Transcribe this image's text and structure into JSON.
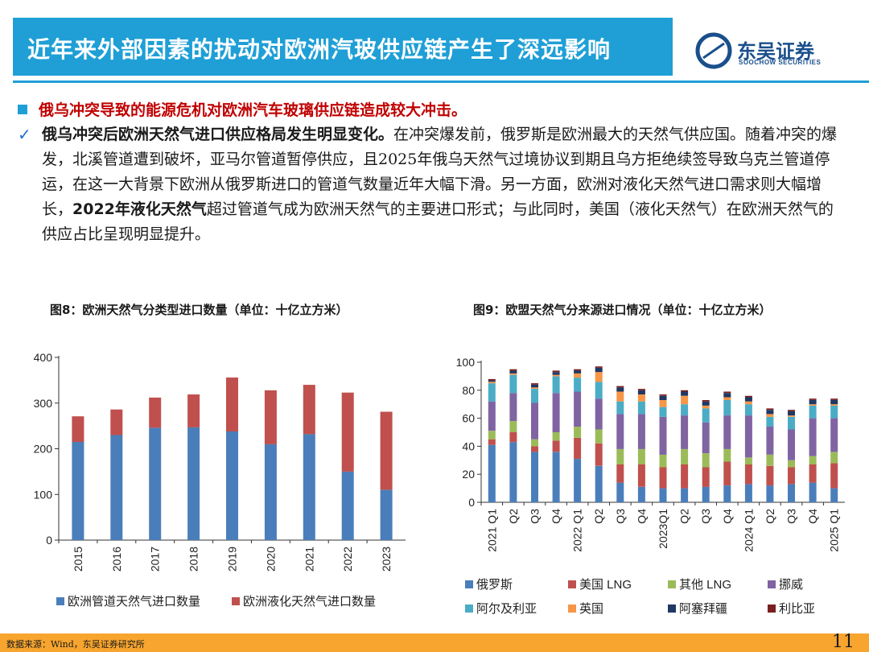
{
  "title": "近年来外部因素的扰动对欧洲汽玻供应链产生了深远影响",
  "logo": {
    "name": "东吴证券",
    "sub": "SOOCHOW SECURITIES"
  },
  "bullet1": "俄乌冲突导致的能源危机对欧洲汽车玻璃供应链造成较大冲击。",
  "para": {
    "lead": "俄乌冲突后欧洲天然气进口供应格局发生明显变化。",
    "body1": "在冲突爆发前，俄罗斯是欧洲最大的天然气供应国。随着冲突的爆发，北溪管道遭到破坏，亚马尔管道暂停供应，且2025年俄乌天然气过境协议到期且乌方拒绝续签导致乌克兰管道停运，在这一大背景下欧洲从俄罗斯进口的管道气数量近年大幅下滑。另一方面，欧洲对液化天然气进口需求则大幅增长，",
    "bold2": "2022年液化天然气",
    "body2": "超过管道气成为欧洲天然气的主要进口形式；与此同时，美国（液化天然气）在欧洲天然气的供应占比呈现明显提升。"
  },
  "caption1": "图8：欧洲天然气分类型进口数量（单位：十亿立方米）",
  "caption2": "图9：欧盟天然气分来源进口情况（单位：十亿立方米）",
  "footer": {
    "source": "数据来源：Wind，东吴证券研究所",
    "page": "11"
  },
  "chart_data": [
    {
      "type": "bar",
      "stacked": true,
      "categories": [
        "2015",
        "2016",
        "2017",
        "2018",
        "2019",
        "2020",
        "2021",
        "2022",
        "2023"
      ],
      "series": [
        {
          "name": "欧洲管道天然气进口数量",
          "color": "#4a7ebb",
          "values": [
            215,
            230,
            246,
            247,
            238,
            210,
            232,
            150,
            110
          ]
        },
        {
          "name": "欧洲液化天然气进口数量",
          "color": "#c0504d",
          "values": [
            56,
            56,
            66,
            72,
            118,
            118,
            108,
            173,
            171
          ]
        }
      ],
      "yticks": [
        "0",
        "100",
        "200",
        "300",
        "400"
      ],
      "ylim": [
        0,
        400
      ]
    },
    {
      "type": "bar",
      "stacked": true,
      "categories": [
        "2021 Q1",
        "Q2",
        "Q3",
        "Q4",
        "2022 Q1",
        "Q2",
        "Q3",
        "Q4",
        "2023Q1",
        "Q2",
        "Q3",
        "Q4",
        "2024 Q1",
        "Q2",
        "Q3",
        "Q4",
        "2025 Q1"
      ],
      "series": [
        {
          "name": "俄罗斯",
          "color": "#4a7ebb",
          "values": [
            41,
            43,
            36,
            36,
            31,
            26,
            14,
            11,
            10,
            10,
            11,
            12,
            13,
            12,
            13,
            14,
            10
          ]
        },
        {
          "name": "美国 LNG",
          "color": "#c0504d",
          "values": [
            4,
            7,
            4,
            8,
            15,
            16,
            13,
            16,
            15,
            17,
            14,
            17,
            14,
            14,
            12,
            13,
            18
          ]
        },
        {
          "name": "其他 LNG",
          "color": "#9bbb59",
          "values": [
            6,
            8,
            5,
            6,
            8,
            10,
            11,
            11,
            9,
            11,
            10,
            9,
            5,
            8,
            5,
            6,
            8
          ]
        },
        {
          "name": "挪威",
          "color": "#8064a2",
          "values": [
            21,
            20,
            26,
            28,
            25,
            22,
            25,
            25,
            27,
            24,
            22,
            24,
            30,
            20,
            22,
            27,
            24
          ]
        },
        {
          "name": "阿尔及利亚",
          "color": "#4bacc6",
          "values": [
            13,
            13,
            10,
            12,
            10,
            12,
            9,
            9,
            7,
            8,
            10,
            11,
            8,
            7,
            9,
            9,
            9
          ]
        },
        {
          "name": "英国",
          "color": "#f79646",
          "values": [
            1,
            1,
            1,
            1,
            3,
            7,
            7,
            5,
            5,
            6,
            2,
            2,
            2,
            2,
            1,
            1,
            1
          ]
        },
        {
          "name": "阿塞拜疆",
          "color": "#1f3864",
          "values": [
            1,
            2,
            2,
            2,
            2,
            3,
            3,
            3,
            3,
            3,
            3,
            3,
            3,
            3,
            3,
            3,
            3
          ]
        },
        {
          "name": "利比亚",
          "color": "#7a1f1f",
          "values": [
            1,
            1,
            1,
            1,
            1,
            1,
            1,
            1,
            1,
            1,
            1,
            1,
            1,
            1,
            1,
            1,
            1
          ]
        }
      ],
      "yticks": [
        "0",
        "20",
        "40",
        "60",
        "80",
        "100"
      ],
      "ylim": [
        0,
        100
      ]
    }
  ]
}
